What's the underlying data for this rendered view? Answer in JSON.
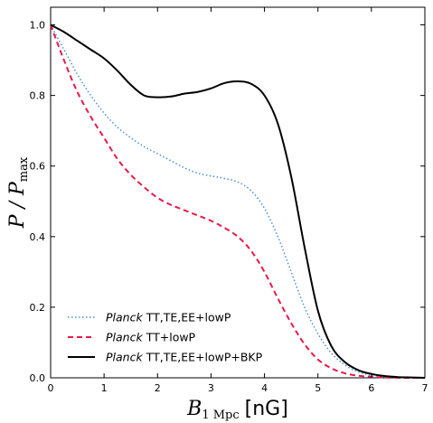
{
  "chart_data": {
    "type": "line",
    "title": "",
    "xlabel": {
      "symbol": "B",
      "subscript": "1 Mpc",
      "unit": "[nG]"
    },
    "ylabel": {
      "symbol": "P / P",
      "subscript": "max"
    },
    "xlim": [
      0,
      7
    ],
    "ylim": [
      0,
      1.05
    ],
    "xticks": [
      "0",
      "1",
      "2",
      "3",
      "4",
      "5",
      "6",
      "7"
    ],
    "yticks": [
      "0.0",
      "0.2",
      "0.4",
      "0.6",
      "0.8",
      "1.0"
    ],
    "grid": false,
    "legend_position": "lower-left",
    "series": [
      {
        "name_italic": "Planck",
        "name_rest": " TT,TE,EE+lowP",
        "style": "dotted",
        "color": "#4a90d9",
        "x": [
          0,
          0.25,
          0.5,
          0.75,
          1.0,
          1.25,
          1.5,
          1.75,
          2.0,
          2.25,
          2.5,
          2.75,
          3.0,
          3.25,
          3.5,
          3.75,
          4.0,
          4.25,
          4.5,
          4.75,
          5.0,
          5.25,
          5.5,
          5.75,
          6.0,
          6.25,
          6.5,
          6.75,
          7.0
        ],
        "y": [
          1.0,
          0.93,
          0.86,
          0.8,
          0.75,
          0.71,
          0.68,
          0.655,
          0.635,
          0.615,
          0.595,
          0.58,
          0.572,
          0.565,
          0.555,
          0.53,
          0.48,
          0.4,
          0.3,
          0.2,
          0.125,
          0.07,
          0.037,
          0.017,
          0.007,
          0.003,
          0.001,
          0.0,
          0.0
        ]
      },
      {
        "name_italic": "Planck",
        "name_rest": " TT+lowP",
        "style": "dashed",
        "color": "#e8194a",
        "x": [
          0,
          0.25,
          0.5,
          0.75,
          1.0,
          1.25,
          1.5,
          1.75,
          2.0,
          2.25,
          2.5,
          2.75,
          3.0,
          3.25,
          3.5,
          3.75,
          4.0,
          4.25,
          4.5,
          4.75,
          5.0,
          5.25,
          5.5,
          5.75,
          6.0,
          6.25,
          6.5,
          6.75,
          7.0
        ],
        "y": [
          1.0,
          0.9,
          0.81,
          0.74,
          0.68,
          0.62,
          0.575,
          0.54,
          0.51,
          0.49,
          0.475,
          0.46,
          0.445,
          0.425,
          0.4,
          0.36,
          0.3,
          0.225,
          0.155,
          0.095,
          0.052,
          0.027,
          0.013,
          0.006,
          0.003,
          0.001,
          0.0,
          0.0,
          0.0
        ]
      },
      {
        "name_italic": "Planck",
        "name_rest": " TT,TE,EE+lowP+BKP",
        "style": "solid",
        "color": "#000000",
        "x": [
          0,
          0.25,
          0.5,
          0.75,
          1.0,
          1.25,
          1.5,
          1.75,
          2.0,
          2.25,
          2.5,
          2.75,
          3.0,
          3.25,
          3.5,
          3.75,
          4.0,
          4.25,
          4.5,
          4.75,
          5.0,
          5.25,
          5.5,
          5.75,
          6.0,
          6.25,
          6.5,
          6.75,
          7.0
        ],
        "y": [
          1.0,
          0.98,
          0.955,
          0.93,
          0.905,
          0.87,
          0.83,
          0.8,
          0.795,
          0.797,
          0.805,
          0.81,
          0.82,
          0.835,
          0.84,
          0.833,
          0.8,
          0.72,
          0.57,
          0.37,
          0.19,
          0.09,
          0.045,
          0.022,
          0.011,
          0.005,
          0.002,
          0.001,
          0.0
        ]
      }
    ]
  }
}
